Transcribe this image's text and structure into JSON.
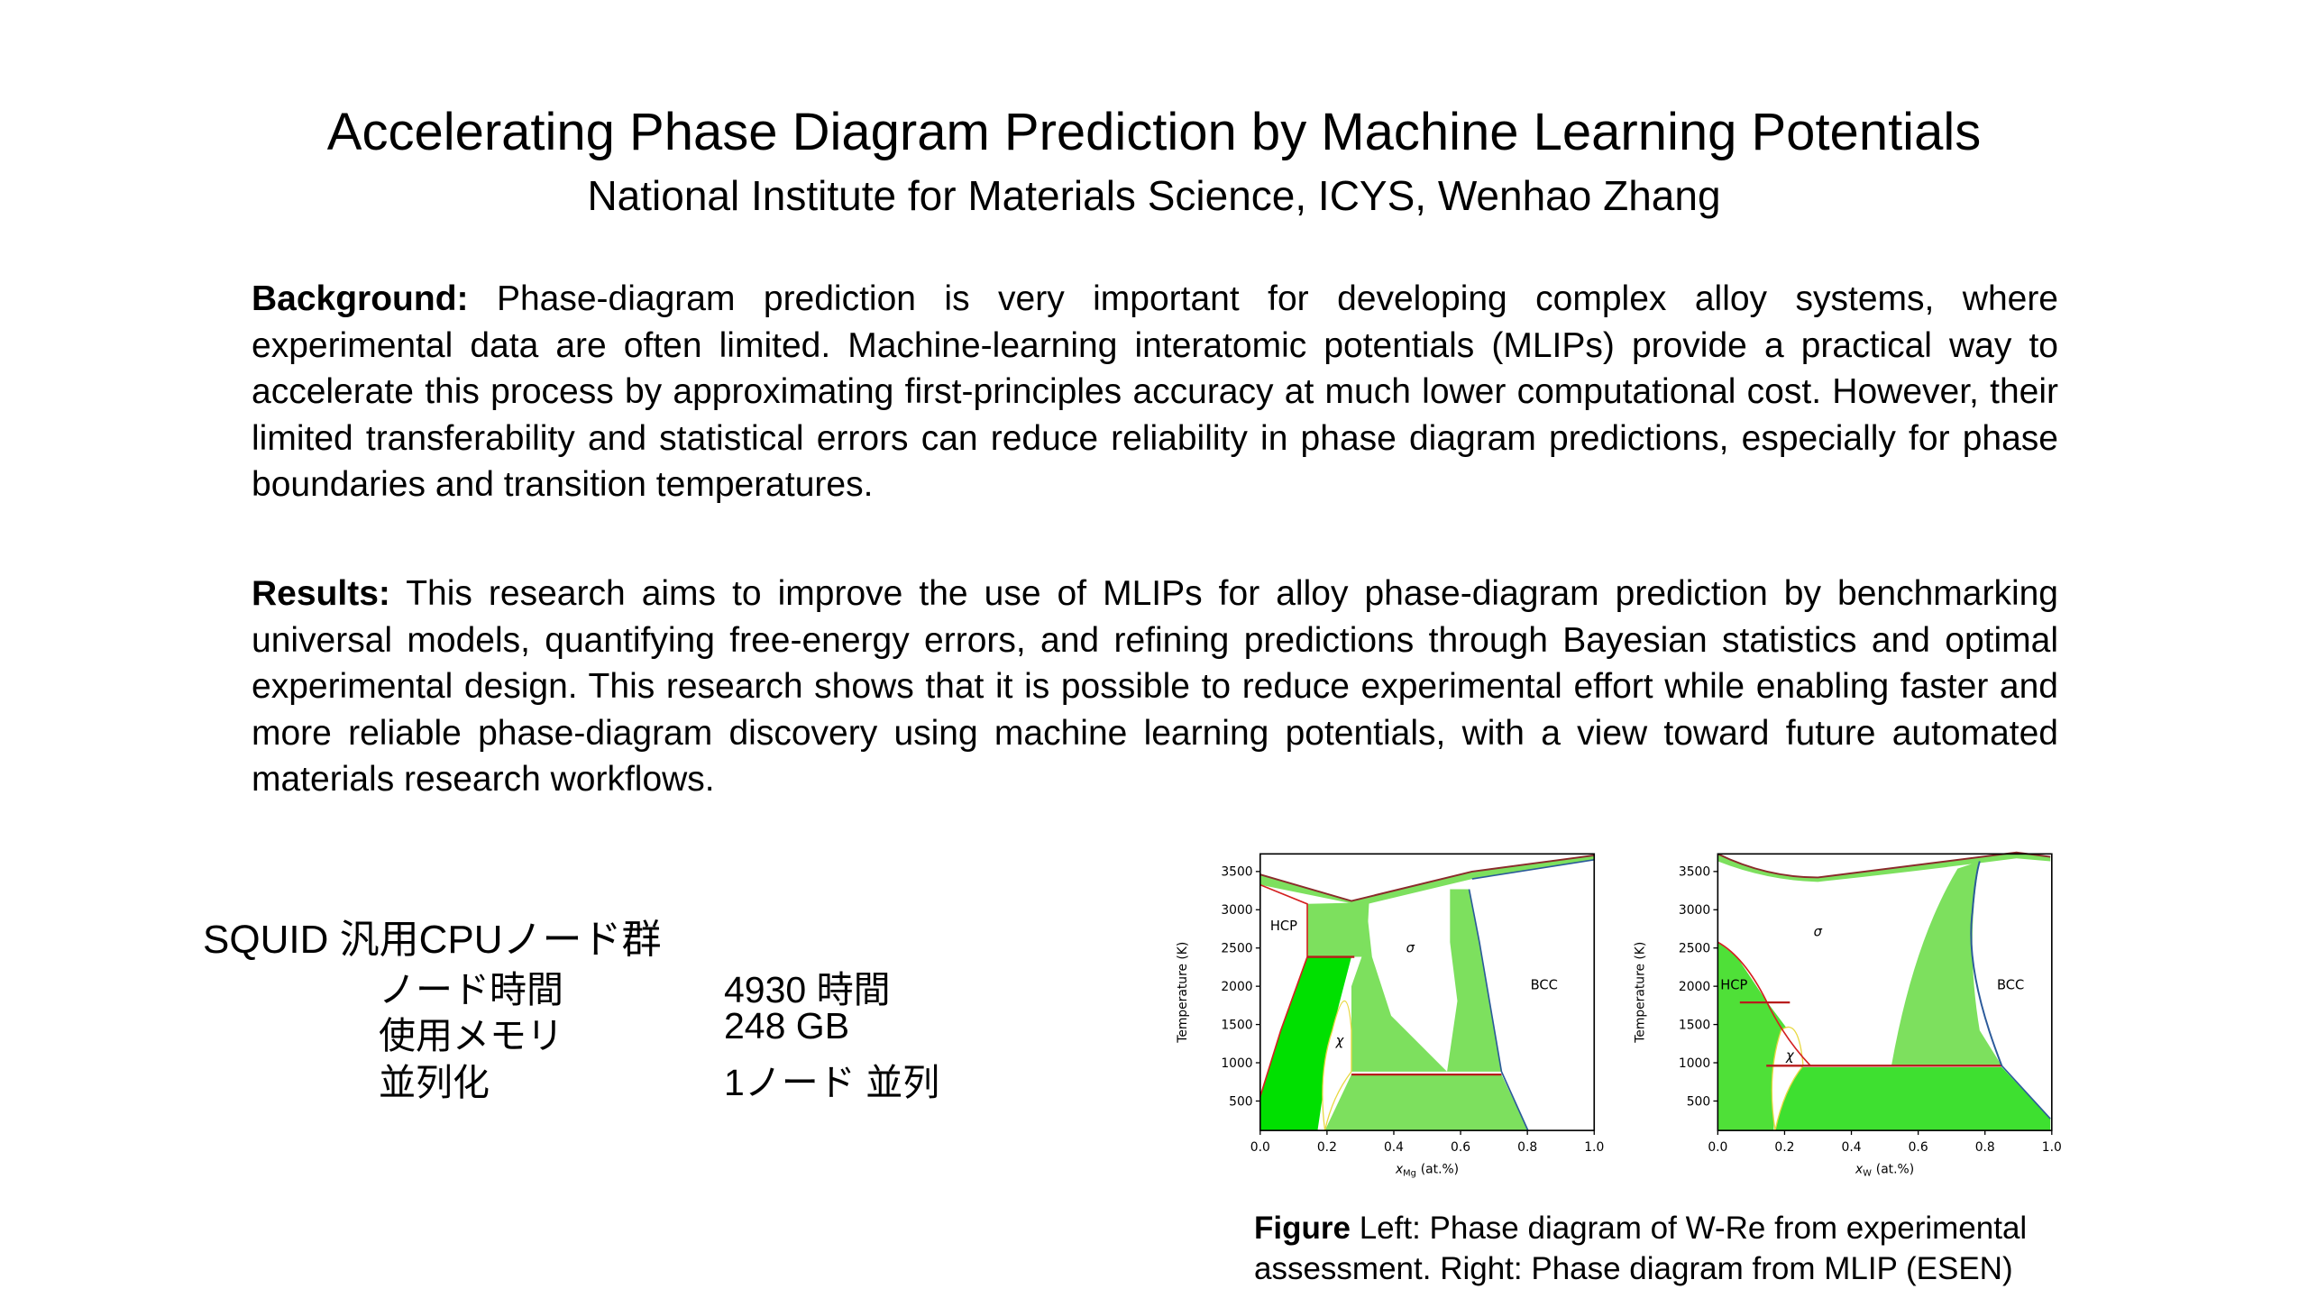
{
  "header": {
    "title": "Accelerating Phase Diagram Prediction by Machine Learning Potentials",
    "subtitle": "National Institute for Materials Science, ICYS, Wenhao Zhang"
  },
  "background": {
    "label": "Background:",
    "text": "Phase-diagram prediction is very important for developing complex alloy systems, where experimental data are often limited. Machine-learning interatomic potentials (MLIPs) provide a practical way to accelerate this process by approximating first-principles accuracy at much lower computational cost. However, their limited transferability and statistical errors can reduce reliability in phase diagram predictions, especially for phase boundaries and transition temperatures."
  },
  "results": {
    "label": "Results:",
    "text": "This research aims to improve the use of MLIPs for alloy phase-diagram prediction by benchmarking universal models, quantifying free-energy errors, and refining predictions through Bayesian statistics and optimal experimental design. This research shows that it is possible to reduce experimental effort while enabling faster and more reliable phase-diagram discovery using machine learning potentials, with a view toward future automated materials research workflows."
  },
  "resources": {
    "title": "SQUID 汎用CPUノード群",
    "rows": [
      [
        "ノード時間",
        "4930 時間"
      ],
      [
        "使用メモリ",
        "248 GB"
      ],
      [
        "並列化",
        "1ノード 並列"
      ]
    ]
  },
  "figure": {
    "panels": [
      {
        "xlim": [
          0,
          1
        ],
        "ylim": [
          115,
          3730
        ],
        "xticks": [
          {
            "value": 0,
            "label": "0.0"
          },
          {
            "value": 0.2,
            "label": "0.2"
          },
          {
            "value": 0.4,
            "label": "0.4"
          },
          {
            "value": 0.6,
            "label": "0.6"
          },
          {
            "value": 0.8,
            "label": "0.8"
          },
          {
            "value": 1,
            "label": "1.0"
          }
        ],
        "yticks": [
          500,
          1000,
          1500,
          2000,
          2500,
          3000,
          3500
        ],
        "ylabel": "Temperature (K)",
        "xlabel": {
          "symbol": "x",
          "subscript": "Mg",
          "unit": "(at.%)"
        },
        "regions": [
          "HCP",
          "σ",
          "χ",
          "BCC"
        ]
      },
      {
        "xlim": [
          0,
          1
        ],
        "ylim": [
          115,
          3730
        ],
        "xticks": [
          {
            "value": 0,
            "label": "0.0"
          },
          {
            "value": 0.2,
            "label": "0.2"
          },
          {
            "value": 0.4,
            "label": "0.4"
          },
          {
            "value": 0.6,
            "label": "0.6"
          },
          {
            "value": 0.8,
            "label": "0.8"
          },
          {
            "value": 1,
            "label": "1.0"
          }
        ],
        "yticks": [
          500,
          1000,
          1500,
          2000,
          2500,
          3000,
          3500
        ],
        "ylabel": "Temperature (K)",
        "xlabel": {
          "symbol": "x",
          "subscript": "W",
          "unit": "(at.%)"
        },
        "regions": [
          "HCP",
          "σ",
          "χ",
          "BCC"
        ]
      }
    ],
    "caption": {
      "label": "Figure",
      "text": "Left: Phase diagram of W-Re from experimental assessment. Right: Phase diagram from MLIP (ESEN)"
    }
  }
}
